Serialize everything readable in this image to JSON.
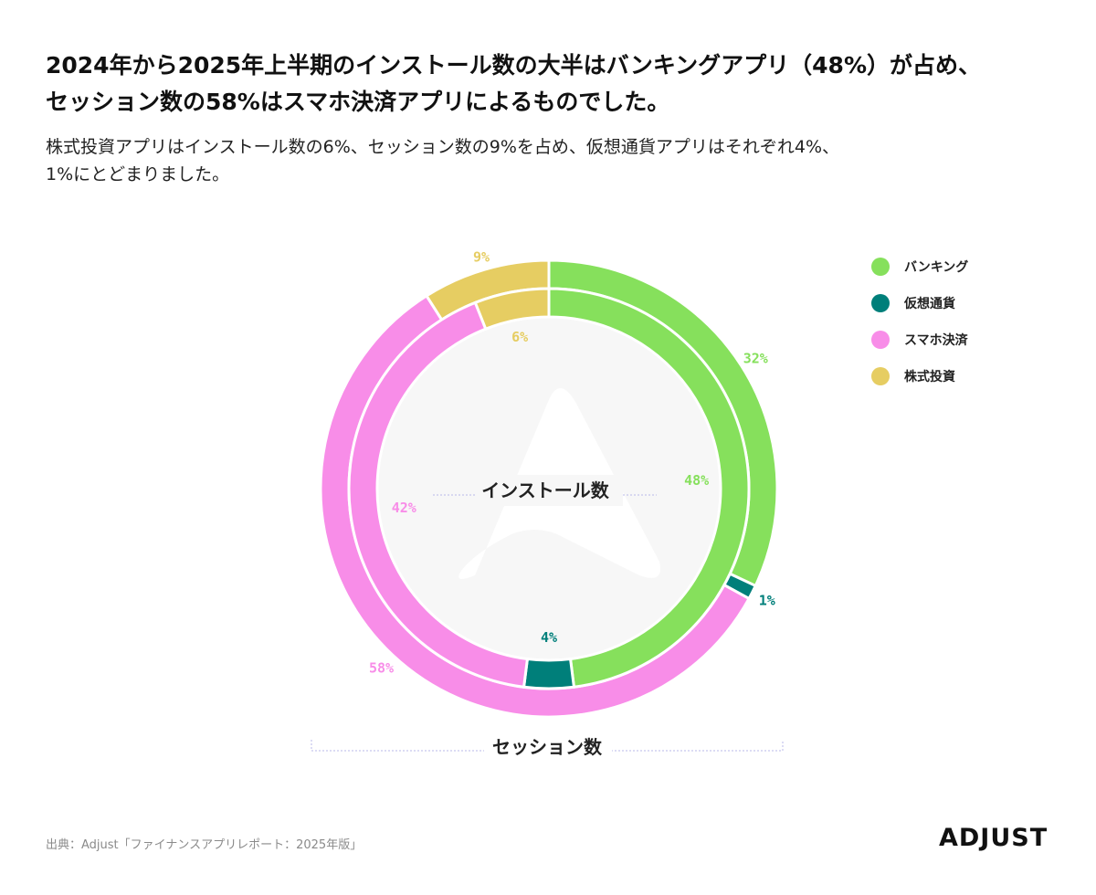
{
  "header": {
    "title_line1": "2024年から2025年上半期のインストール数の大半はバンキングアプリ（48%）が占め、",
    "title_line2": "セッション数の58%はスマホ決済アプリによるものでした。",
    "subtitle_line1": "株式投資アプリはインストール数の6%、セッション数の9%を占め、仮想通貨アプリはそれぞれ4%、",
    "subtitle_line2": "1%にとどまりました。"
  },
  "chart_data": {
    "type": "pie",
    "categories": [
      "バンキング",
      "仮想通貨",
      "スマホ決済",
      "株式投資"
    ],
    "colors": [
      "#86e05c",
      "#007f7a",
      "#f88de8",
      "#e6cd62"
    ],
    "series": [
      {
        "name": "インストール数",
        "values": [
          48,
          4,
          42,
          6
        ],
        "labels": [
          "48%",
          "4%",
          "42%",
          "6%"
        ]
      },
      {
        "name": "セッション数",
        "values": [
          32,
          1,
          58,
          9
        ],
        "labels": [
          "32%",
          "1%",
          "58%",
          "9%"
        ]
      }
    ],
    "legend_position": "top-right"
  },
  "footer": {
    "source": "出典：Adjust「ファイナンスアプリレポート：2025年版」",
    "logo": "ADJUST"
  }
}
